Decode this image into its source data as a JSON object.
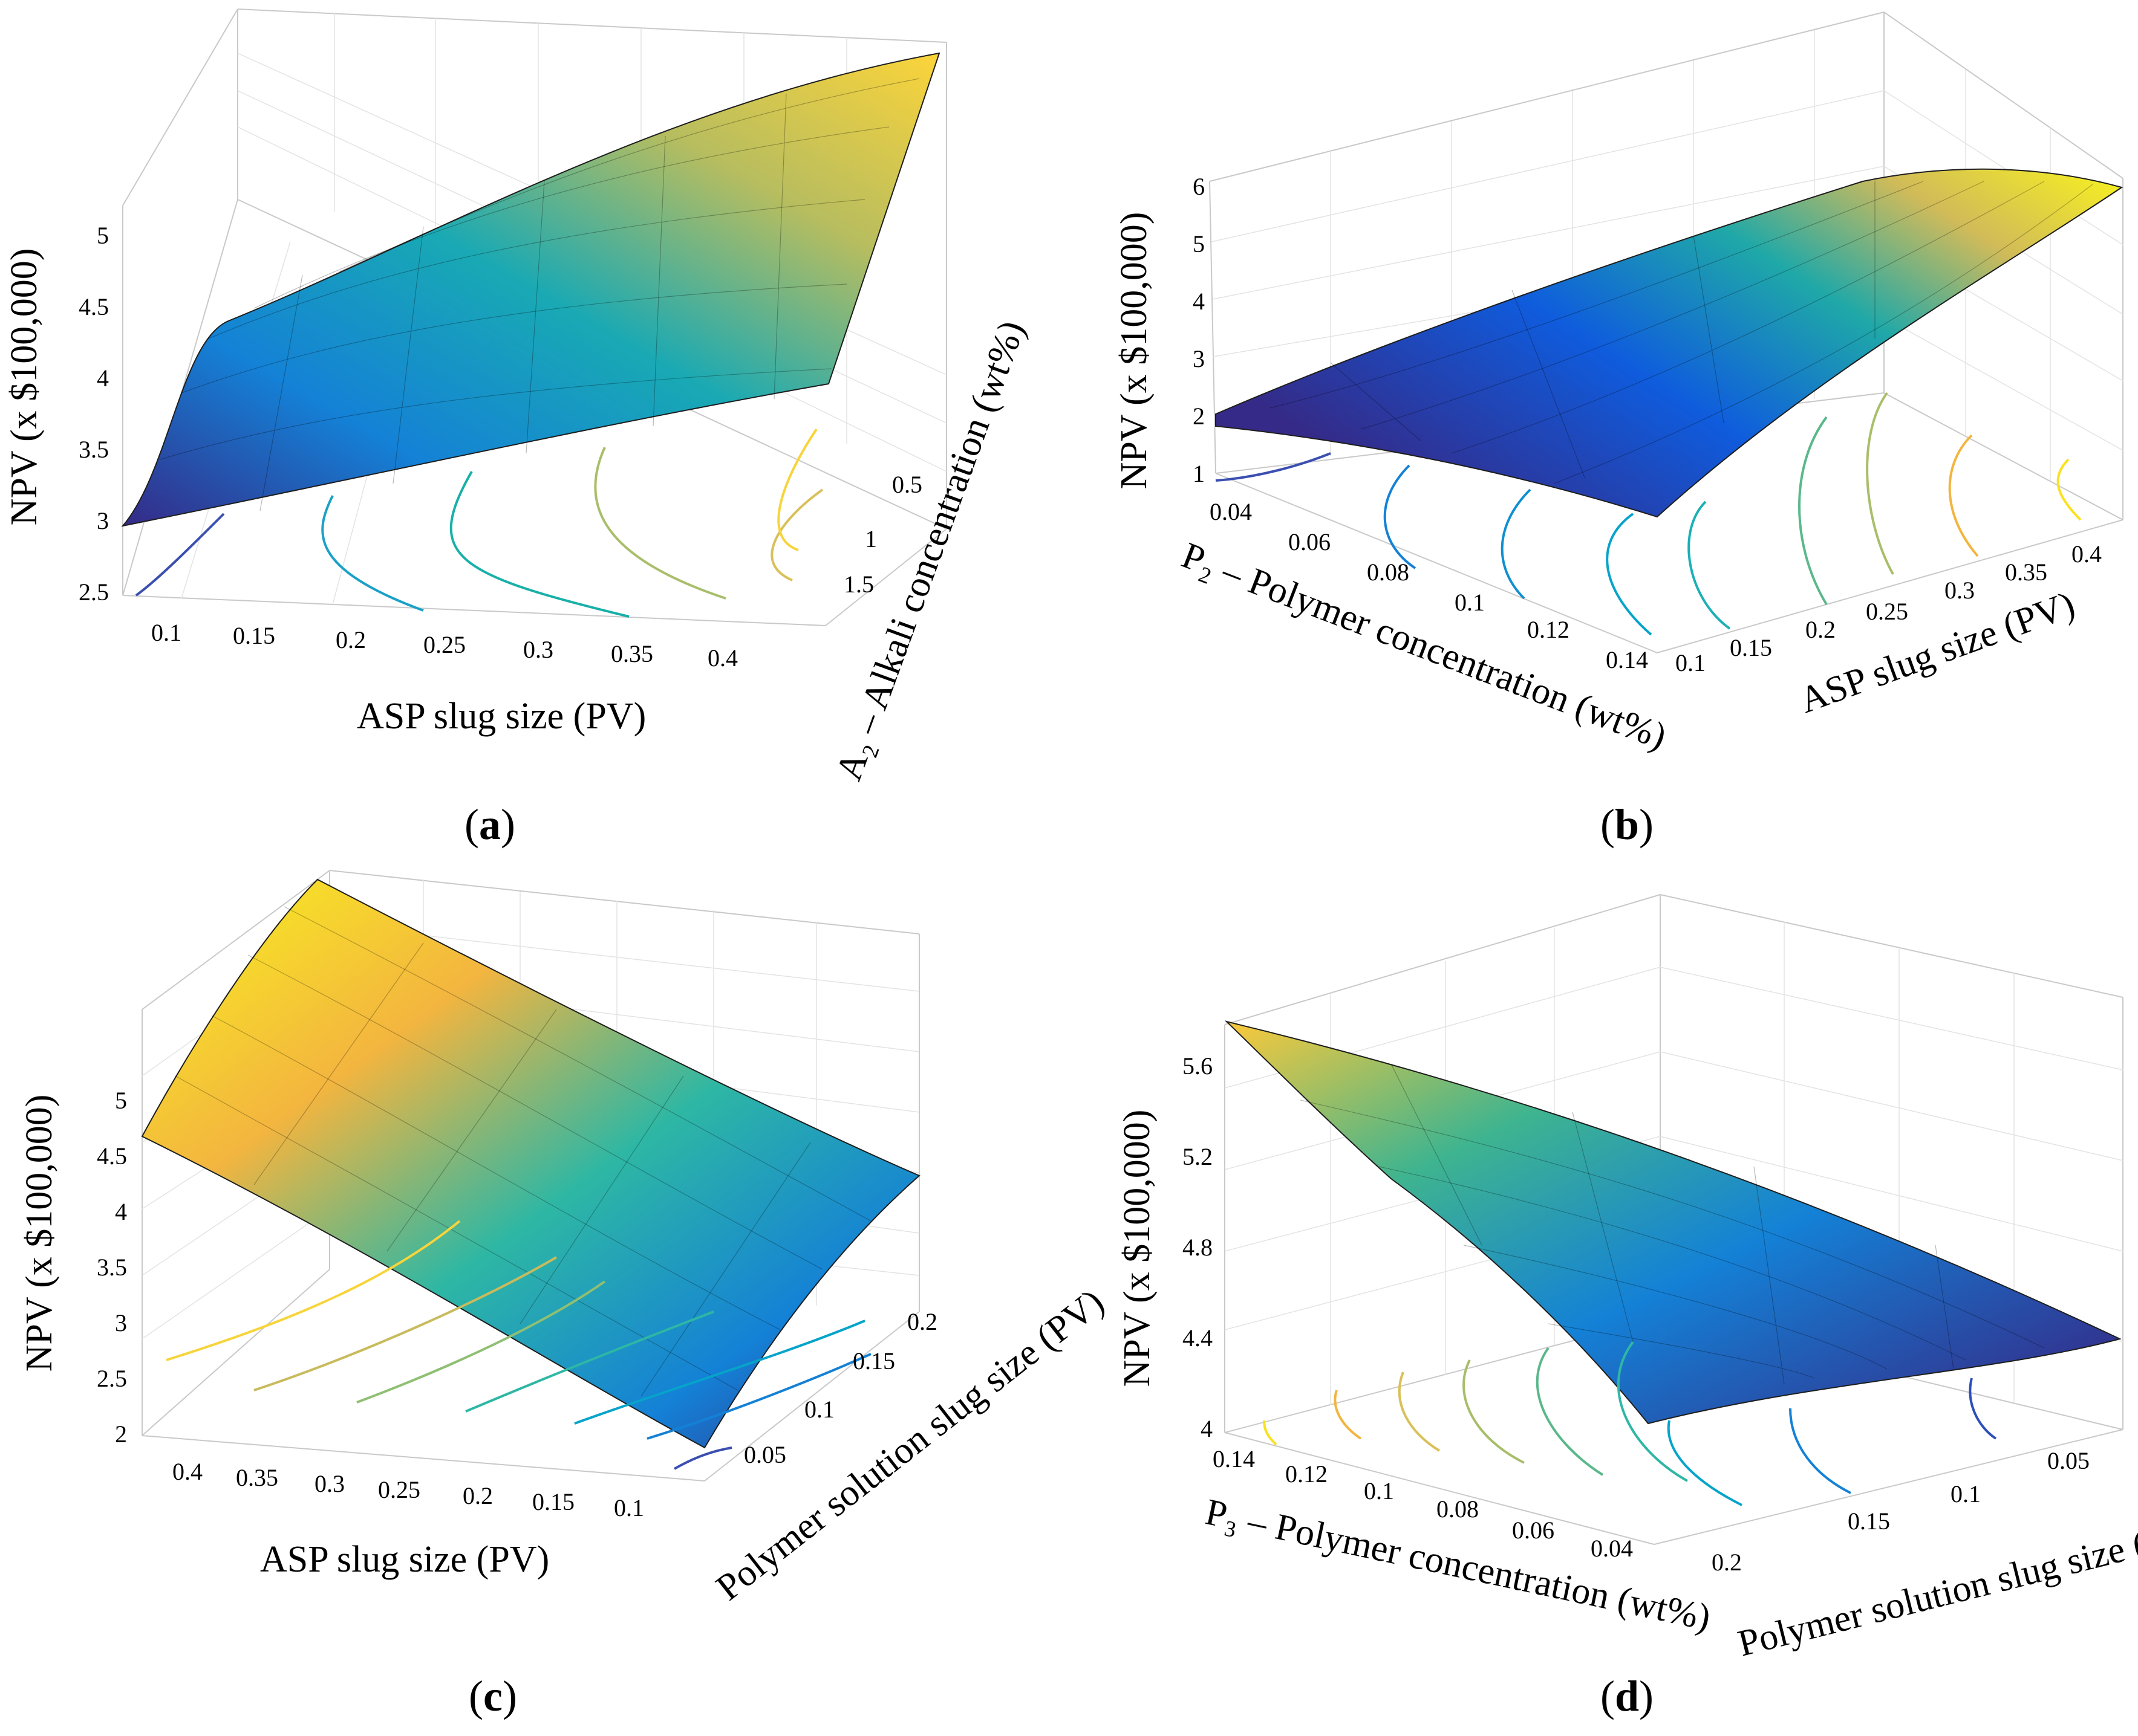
{
  "figure": {
    "panels": [
      {
        "label_open": "(",
        "label_letter": "a",
        "label_close": ")"
      },
      {
        "label_open": "(",
        "label_letter": "b",
        "label_close": ")"
      },
      {
        "label_open": "(",
        "label_letter": "c",
        "label_close": ")"
      },
      {
        "label_open": "(",
        "label_letter": "d",
        "label_close": ")"
      }
    ]
  },
  "chart_data": [
    {
      "type": "surface",
      "colormap": [
        "#352a87",
        "#0f5cdd",
        "#1481d6",
        "#06a4ca",
        "#2eb7a4",
        "#87bf77",
        "#d1bb59",
        "#fec832",
        "#f9fb0e"
      ],
      "grid": true,
      "xlabel": "ASP slug size (PV)",
      "ylabel": "A₂ – Alkali concentration (wt%)",
      "zlabel": "NPV (x $100,000)",
      "x_ticks": [
        "0.1",
        "0.15",
        "0.2",
        "0.25",
        "0.3",
        "0.35",
        "0.4"
      ],
      "y_ticks": [
        "0.5",
        "1",
        "1.5"
      ],
      "z_ticks": [
        "2.5",
        "3",
        "3.5",
        "4",
        "4.5",
        "5"
      ],
      "xlim": [
        0.07,
        0.43
      ],
      "ylim": [
        0.2,
        1.8
      ],
      "zlim": [
        2.5,
        5.3
      ],
      "surface_corners": {
        "low_slug_low_alkali": 3.0,
        "low_slug_high_alkali": 4.5,
        "high_slug_low_alkali": 4.1,
        "high_slug_high_alkali": 5.2
      },
      "contour_levels": 6
    },
    {
      "type": "surface",
      "grid": true,
      "xlabel": "P₂ – Polymer concentration (wt%)",
      "ylabel": "ASP slug size (PV)",
      "zlabel": "NPV (x $100,000)",
      "x_ticks": [
        "0.04",
        "0.06",
        "0.08",
        "0.1",
        "0.12",
        "0.14"
      ],
      "y_ticks": [
        "0.1",
        "0.15",
        "0.2",
        "0.25",
        "0.3",
        "0.35",
        "0.4"
      ],
      "z_ticks": [
        "1",
        "2",
        "3",
        "4",
        "5",
        "6"
      ],
      "xlim": [
        0.03,
        0.15
      ],
      "ylim": [
        0.07,
        0.43
      ],
      "zlim": [
        1,
        6
      ],
      "surface_corners": {
        "low_conc_low_slug": 1.9,
        "high_conc_low_slug": 2.5,
        "low_conc_high_slug": 5.0,
        "high_conc_high_slug": 5.9
      },
      "contour_levels": 9
    },
    {
      "type": "surface",
      "grid": true,
      "xlabel": "ASP slug size (PV)",
      "ylabel": "Polymer solution slug size (PV)",
      "zlabel": "NPV (x $100,000)",
      "x_ticks": [
        "0.4",
        "0.35",
        "0.3",
        "0.25",
        "0.2",
        "0.15",
        "0.1"
      ],
      "y_ticks": [
        "0.05",
        "0.1",
        "0.15",
        "0.2"
      ],
      "z_ticks": [
        "2",
        "2.5",
        "3",
        "3.5",
        "4",
        "4.5",
        "5"
      ],
      "xlim": [
        0.07,
        0.43
      ],
      "ylim": [
        0.02,
        0.22
      ],
      "zlim": [
        2,
        5.5
      ],
      "surface_corners": {
        "high_asp_low_poly": 4.9,
        "high_asp_high_poly": 5.5,
        "low_asp_low_poly": 2.0,
        "low_asp_high_poly": 4.0
      },
      "contour_levels": 7
    },
    {
      "type": "surface",
      "grid": true,
      "xlabel": "P₃ – Polymer concentration (wt%)",
      "ylabel": "Polymer solution slug size (PV)",
      "zlabel": "NPV (x $100,000)",
      "x_ticks": [
        "0.14",
        "0.12",
        "0.1",
        "0.08",
        "0.06",
        "0.04"
      ],
      "y_ticks": [
        "0.05",
        "0.1",
        "0.15",
        "0.2"
      ],
      "z_ticks": [
        "4",
        "4.4",
        "4.8",
        "5.2",
        "5.6"
      ],
      "xlim": [
        0.03,
        0.15
      ],
      "ylim": [
        0.02,
        0.22
      ],
      "zlim": [
        4,
        5.9
      ],
      "surface_corners": {
        "high_conc_low_slug": 5.85,
        "high_conc_high_slug": 5.2,
        "low_conc_low_slug": 4.3,
        "low_conc_high_slug": 4.4
      },
      "contour_levels": 9
    }
  ]
}
